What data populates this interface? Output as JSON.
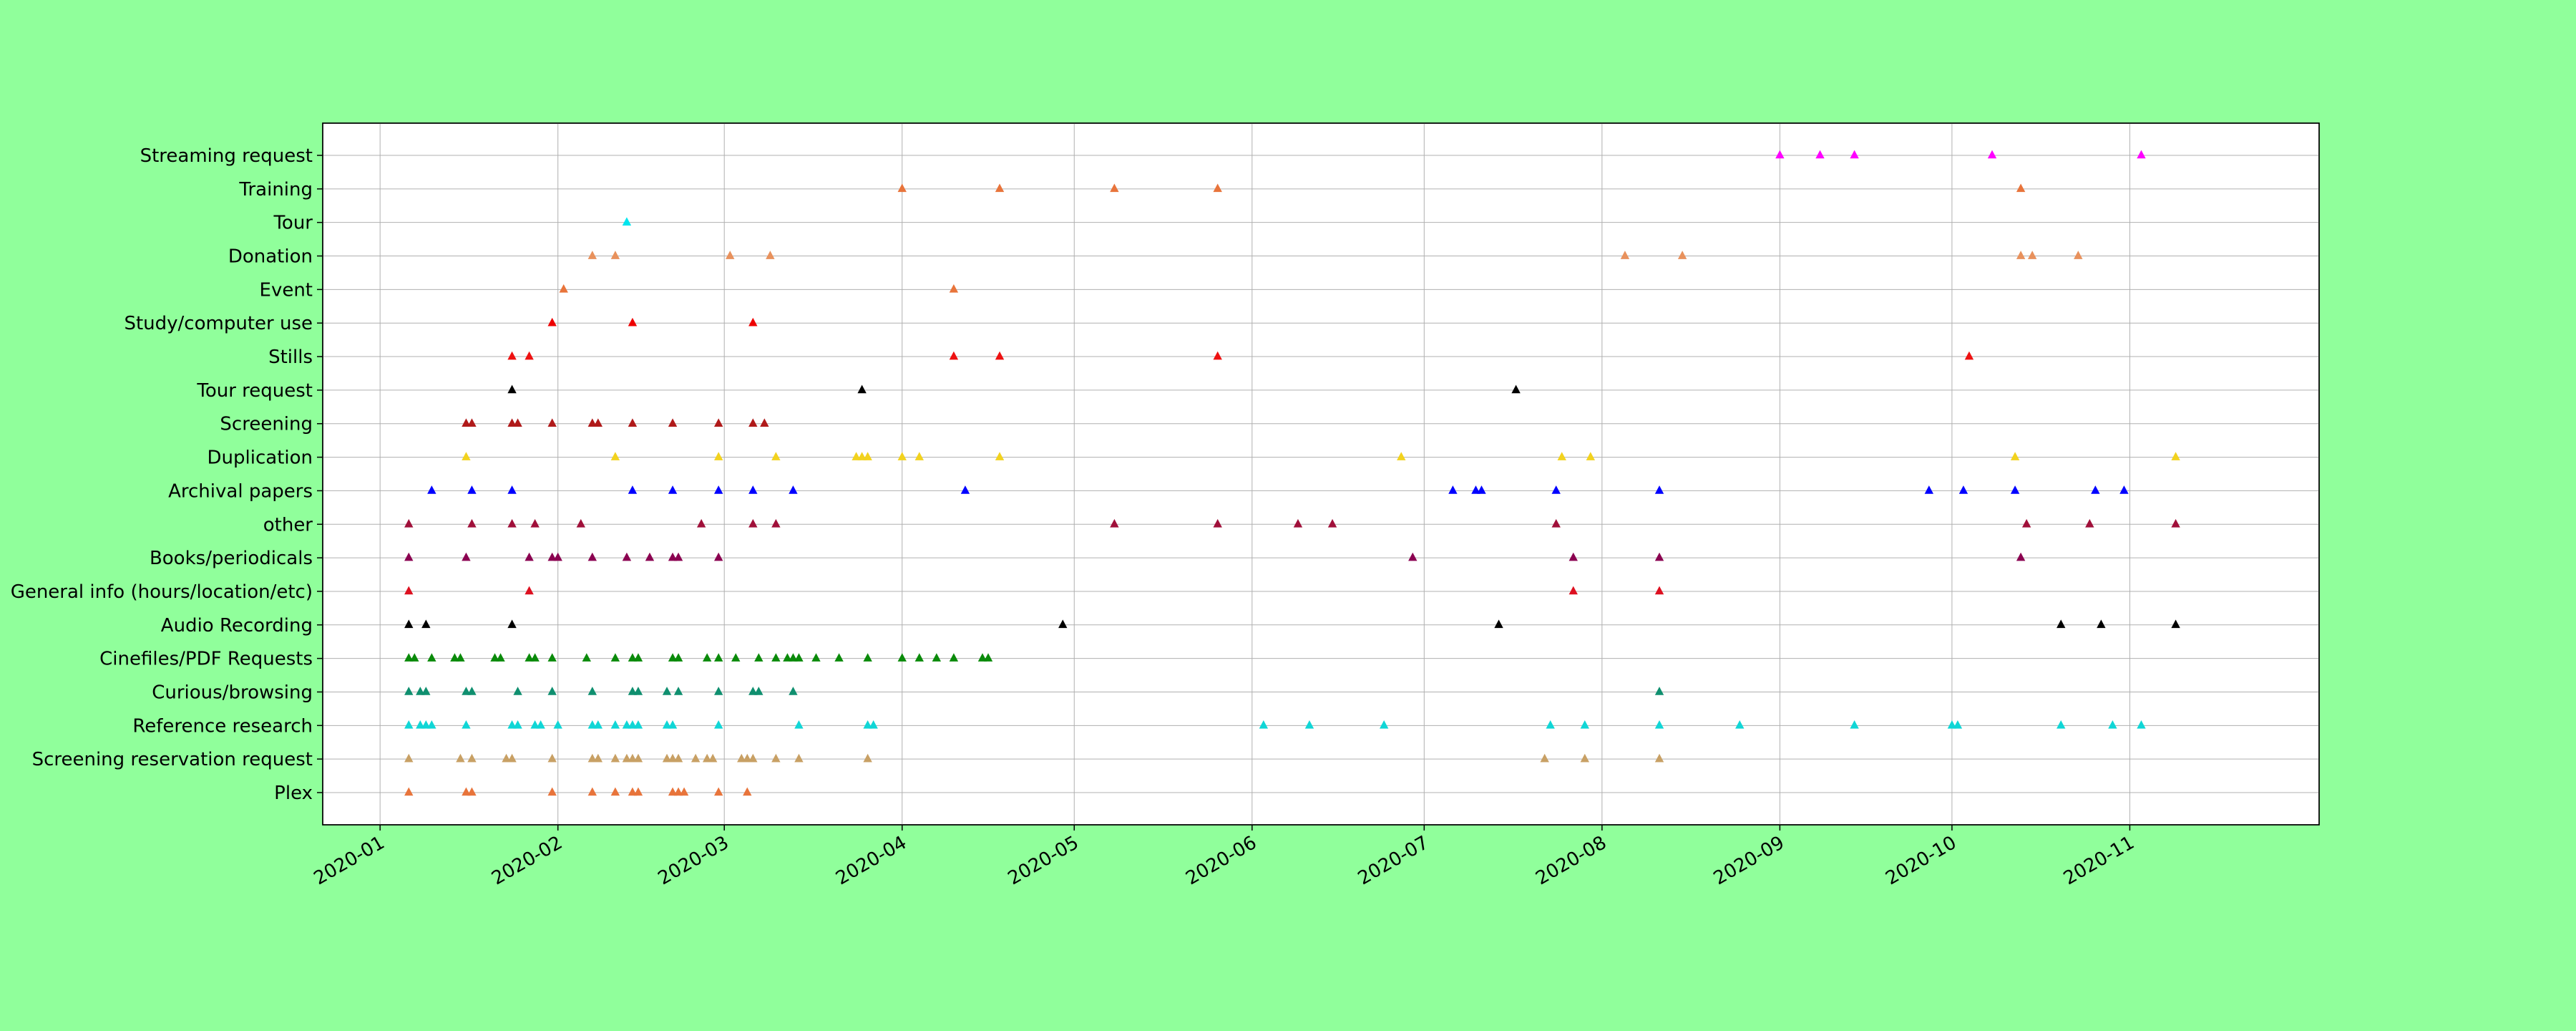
{
  "chart_data": {
    "type": "scatter",
    "marker": "triangle-up",
    "x_axis": "date",
    "xlim": [
      "2019-12-22",
      "2020-12-04"
    ],
    "x_ticks": [
      "2020-01-01",
      "2020-02-01",
      "2020-03-01",
      "2020-04-01",
      "2020-05-01",
      "2020-06-01",
      "2020-07-01",
      "2020-08-01",
      "2020-09-01",
      "2020-10-01",
      "2020-11-01"
    ],
    "x_tick_labels": [
      "2020-01",
      "2020-02",
      "2020-03",
      "2020-04",
      "2020-05",
      "2020-06",
      "2020-07",
      "2020-08",
      "2020-09",
      "2020-10",
      "2020-11"
    ],
    "grid": true,
    "legend": "none",
    "categories": [
      "Plex",
      "Screening reservation request",
      "Reference research",
      "Curious/browsing",
      "Cinefiles/PDF Requests",
      "Audio Recording",
      "General info (hours/location/etc)",
      "Books/periodicals",
      "other",
      "Archival papers",
      "Duplication",
      "Screening",
      "Tour request",
      "Stills",
      "Study/computer use",
      "Event",
      "Donation",
      "Tour",
      "Training",
      "Streaming request"
    ],
    "series": [
      {
        "category": "Streaming request",
        "color": "#ff00ff",
        "dates": [
          "2020-09-01",
          "2020-09-08",
          "2020-09-14",
          "2020-10-08",
          "2020-11-03"
        ]
      },
      {
        "category": "Training",
        "color": "#e8743b",
        "dates": [
          "2020-04-01",
          "2020-04-18",
          "2020-05-08",
          "2020-05-26",
          "2020-10-13"
        ]
      },
      {
        "category": "Tour",
        "color": "#00e5ee",
        "dates": [
          "2020-02-13"
        ]
      },
      {
        "category": "Donation",
        "color": "#e8915c",
        "dates": [
          "2020-02-07",
          "2020-02-11",
          "2020-03-02",
          "2020-03-09",
          "2020-08-05",
          "2020-08-15",
          "2020-10-13",
          "2020-10-15",
          "2020-10-23"
        ]
      },
      {
        "category": "Event",
        "color": "#e8743b",
        "dates": [
          "2020-02-02",
          "2020-04-10"
        ]
      },
      {
        "category": "Study/computer use",
        "color": "#ee0000",
        "dates": [
          "2020-01-31",
          "2020-02-14",
          "2020-03-06"
        ]
      },
      {
        "category": "Stills",
        "color": "#ee1111",
        "dates": [
          "2020-01-24",
          "2020-01-27",
          "2020-04-10",
          "2020-04-18",
          "2020-05-26",
          "2020-10-04"
        ]
      },
      {
        "category": "Tour request",
        "color": "#000000",
        "dates": [
          "2020-01-24",
          "2020-03-25",
          "2020-07-17"
        ]
      },
      {
        "category": "Screening",
        "color": "#b01a1a",
        "dates": [
          "2020-01-16",
          "2020-01-17",
          "2020-01-24",
          "2020-01-25",
          "2020-01-31",
          "2020-02-07",
          "2020-02-08",
          "2020-02-14",
          "2020-02-21",
          "2020-02-29",
          "2020-03-06",
          "2020-03-08"
        ]
      },
      {
        "category": "Duplication",
        "color": "#f2d21e",
        "dates": [
          "2020-01-16",
          "2020-02-11",
          "2020-02-29",
          "2020-03-10",
          "2020-03-24",
          "2020-03-25",
          "2020-03-26",
          "2020-04-01",
          "2020-04-04",
          "2020-04-18",
          "2020-06-27",
          "2020-07-25",
          "2020-07-30",
          "2020-10-12",
          "2020-11-09"
        ]
      },
      {
        "category": "Archival papers",
        "color": "#0000ff",
        "dates": [
          "2020-01-10",
          "2020-01-17",
          "2020-01-24",
          "2020-02-14",
          "2020-02-21",
          "2020-02-29",
          "2020-03-06",
          "2020-03-13",
          "2020-04-12",
          "2020-07-06",
          "2020-07-10",
          "2020-07-11",
          "2020-07-24",
          "2020-08-11",
          "2020-09-27",
          "2020-10-03",
          "2020-10-12",
          "2020-10-26",
          "2020-10-31"
        ]
      },
      {
        "category": "other",
        "color": "#a0103a",
        "dates": [
          "2020-01-06",
          "2020-01-17",
          "2020-01-24",
          "2020-01-28",
          "2020-02-05",
          "2020-02-26",
          "2020-03-06",
          "2020-03-10",
          "2020-05-08",
          "2020-05-26",
          "2020-06-09",
          "2020-06-15",
          "2020-07-24",
          "2020-10-14",
          "2020-10-25",
          "2020-11-09"
        ]
      },
      {
        "category": "Books/periodicals",
        "color": "#8b0050",
        "dates": [
          "2020-01-06",
          "2020-01-16",
          "2020-01-27",
          "2020-01-31",
          "2020-02-01",
          "2020-02-07",
          "2020-02-13",
          "2020-02-17",
          "2020-02-21",
          "2020-02-22",
          "2020-02-29",
          "2020-06-29",
          "2020-07-27",
          "2020-08-11",
          "2020-10-13"
        ]
      },
      {
        "category": "General info (hours/location/etc)",
        "color": "#dd1020",
        "dates": [
          "2020-01-06",
          "2020-01-27",
          "2020-07-27",
          "2020-08-11"
        ]
      },
      {
        "category": "Audio Recording",
        "color": "#000000",
        "dates": [
          "2020-01-06",
          "2020-01-09",
          "2020-01-24",
          "2020-04-29",
          "2020-07-14",
          "2020-10-20",
          "2020-10-27",
          "2020-11-09"
        ]
      },
      {
        "category": "Cinefiles/PDF Requests",
        "color": "#0a8a0a",
        "dates": [
          "2020-01-06",
          "2020-01-07",
          "2020-01-10",
          "2020-01-14",
          "2020-01-15",
          "2020-01-21",
          "2020-01-22",
          "2020-01-27",
          "2020-01-28",
          "2020-01-31",
          "2020-02-06",
          "2020-02-11",
          "2020-02-14",
          "2020-02-15",
          "2020-02-21",
          "2020-02-22",
          "2020-02-27",
          "2020-02-29",
          "2020-03-03",
          "2020-03-07",
          "2020-03-10",
          "2020-03-12",
          "2020-03-13",
          "2020-03-14",
          "2020-03-17",
          "2020-03-21",
          "2020-03-26",
          "2020-04-01",
          "2020-04-04",
          "2020-04-07",
          "2020-04-10",
          "2020-04-15",
          "2020-04-16"
        ]
      },
      {
        "category": "Curious/browsing",
        "color": "#0f8f6f",
        "dates": [
          "2020-01-06",
          "2020-01-08",
          "2020-01-09",
          "2020-01-16",
          "2020-01-17",
          "2020-01-25",
          "2020-01-31",
          "2020-02-07",
          "2020-02-14",
          "2020-02-15",
          "2020-02-20",
          "2020-02-22",
          "2020-02-29",
          "2020-03-06",
          "2020-03-07",
          "2020-03-13",
          "2020-08-11"
        ]
      },
      {
        "category": "Reference research",
        "color": "#10d6d6",
        "dates": [
          "2020-01-06",
          "2020-01-08",
          "2020-01-09",
          "2020-01-10",
          "2020-01-16",
          "2020-01-24",
          "2020-01-25",
          "2020-01-28",
          "2020-01-29",
          "2020-02-01",
          "2020-02-07",
          "2020-02-08",
          "2020-02-11",
          "2020-02-13",
          "2020-02-14",
          "2020-02-15",
          "2020-02-20",
          "2020-02-21",
          "2020-02-29",
          "2020-03-14",
          "2020-03-26",
          "2020-03-27",
          "2020-06-03",
          "2020-06-11",
          "2020-06-24",
          "2020-07-23",
          "2020-07-29",
          "2020-08-11",
          "2020-08-25",
          "2020-09-14",
          "2020-10-01",
          "2020-10-02",
          "2020-10-20",
          "2020-10-29",
          "2020-11-03"
        ]
      },
      {
        "category": "Screening reservation request",
        "color": "#c8a064",
        "dates": [
          "2020-01-06",
          "2020-01-15",
          "2020-01-17",
          "2020-01-23",
          "2020-01-24",
          "2020-01-31",
          "2020-02-07",
          "2020-02-08",
          "2020-02-11",
          "2020-02-13",
          "2020-02-14",
          "2020-02-15",
          "2020-02-20",
          "2020-02-21",
          "2020-02-22",
          "2020-02-25",
          "2020-02-27",
          "2020-02-28",
          "2020-03-04",
          "2020-03-05",
          "2020-03-06",
          "2020-03-10",
          "2020-03-14",
          "2020-03-26",
          "2020-07-22",
          "2020-07-29",
          "2020-08-11"
        ]
      },
      {
        "category": "Plex",
        "color": "#e8743b",
        "dates": [
          "2020-01-06",
          "2020-01-16",
          "2020-01-17",
          "2020-01-31",
          "2020-02-07",
          "2020-02-11",
          "2020-02-14",
          "2020-02-15",
          "2020-02-21",
          "2020-02-22",
          "2020-02-23",
          "2020-02-29",
          "2020-03-05"
        ]
      }
    ]
  }
}
